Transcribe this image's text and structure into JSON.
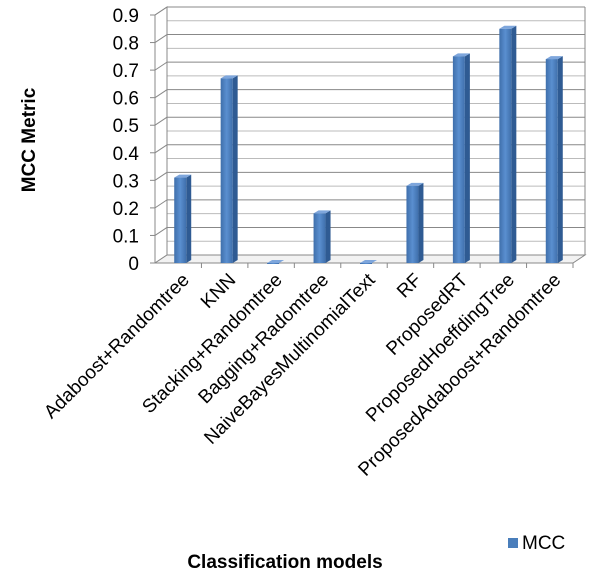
{
  "chart_data": {
    "type": "bar",
    "title": "",
    "xlabel": "Classification models",
    "ylabel": "MCC  Metric",
    "ylim": [
      0,
      0.9
    ],
    "yticks": [
      "0",
      "0.1",
      "0.2",
      "0.3",
      "0.4",
      "0.5",
      "0.6",
      "0.7",
      "0.8",
      "0.9"
    ],
    "grid": true,
    "legend_position": "bottom-right",
    "categories": [
      "Adaboost+Randomtree",
      "KNN",
      "Stacking+Randomtree",
      "Bagging+Radomtree",
      "NaiveBayesMultinomialText",
      "RF",
      "ProposedRT",
      "ProposedHoeffdingTree",
      "ProposedAdaboost+Randomtree"
    ],
    "series": [
      {
        "name": "MCC",
        "color": "#4a7ebb",
        "values": [
          0.31,
          0.67,
          0.0,
          0.18,
          0.0,
          0.28,
          0.75,
          0.85,
          0.74
        ]
      }
    ]
  }
}
